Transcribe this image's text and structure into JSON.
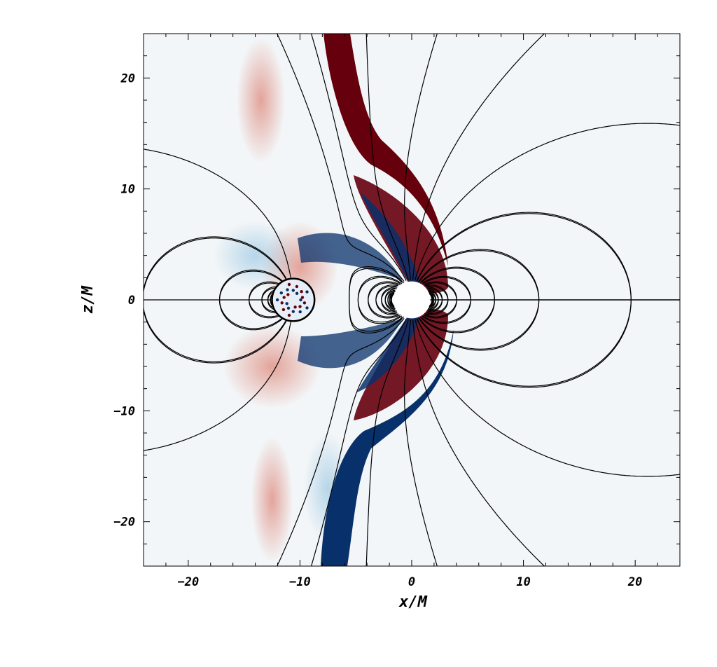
{
  "chart_data": {
    "type": "heatmap",
    "xlabel": "x/M",
    "ylabel": "z/M",
    "xlim": [
      -24,
      24
    ],
    "ylim": [
      -24,
      24
    ],
    "xticks": [
      -20,
      -10,
      0,
      10,
      20
    ],
    "yticks": [
      20,
      10,
      0,
      -10,
      -20
    ],
    "xtick_labels": [
      "−20",
      "−10",
      "0",
      "10",
      "20"
    ],
    "ytick_labels": [
      "20",
      "10",
      "0",
      "−10",
      "−20"
    ],
    "colormap": [
      "#08306b",
      "#2c6fae",
      "#9ecae1",
      "#f7f7f7",
      "#fcbba1",
      "#d6604d",
      "#67000d"
    ],
    "objects": [
      {
        "kind": "compact star",
        "x": -10.6,
        "z": 0.0,
        "radius": 1.9
      },
      {
        "kind": "black hole",
        "x": 0.0,
        "z": 0.0,
        "radius": 1.65
      }
    ],
    "grid": false,
    "legend": "none"
  }
}
